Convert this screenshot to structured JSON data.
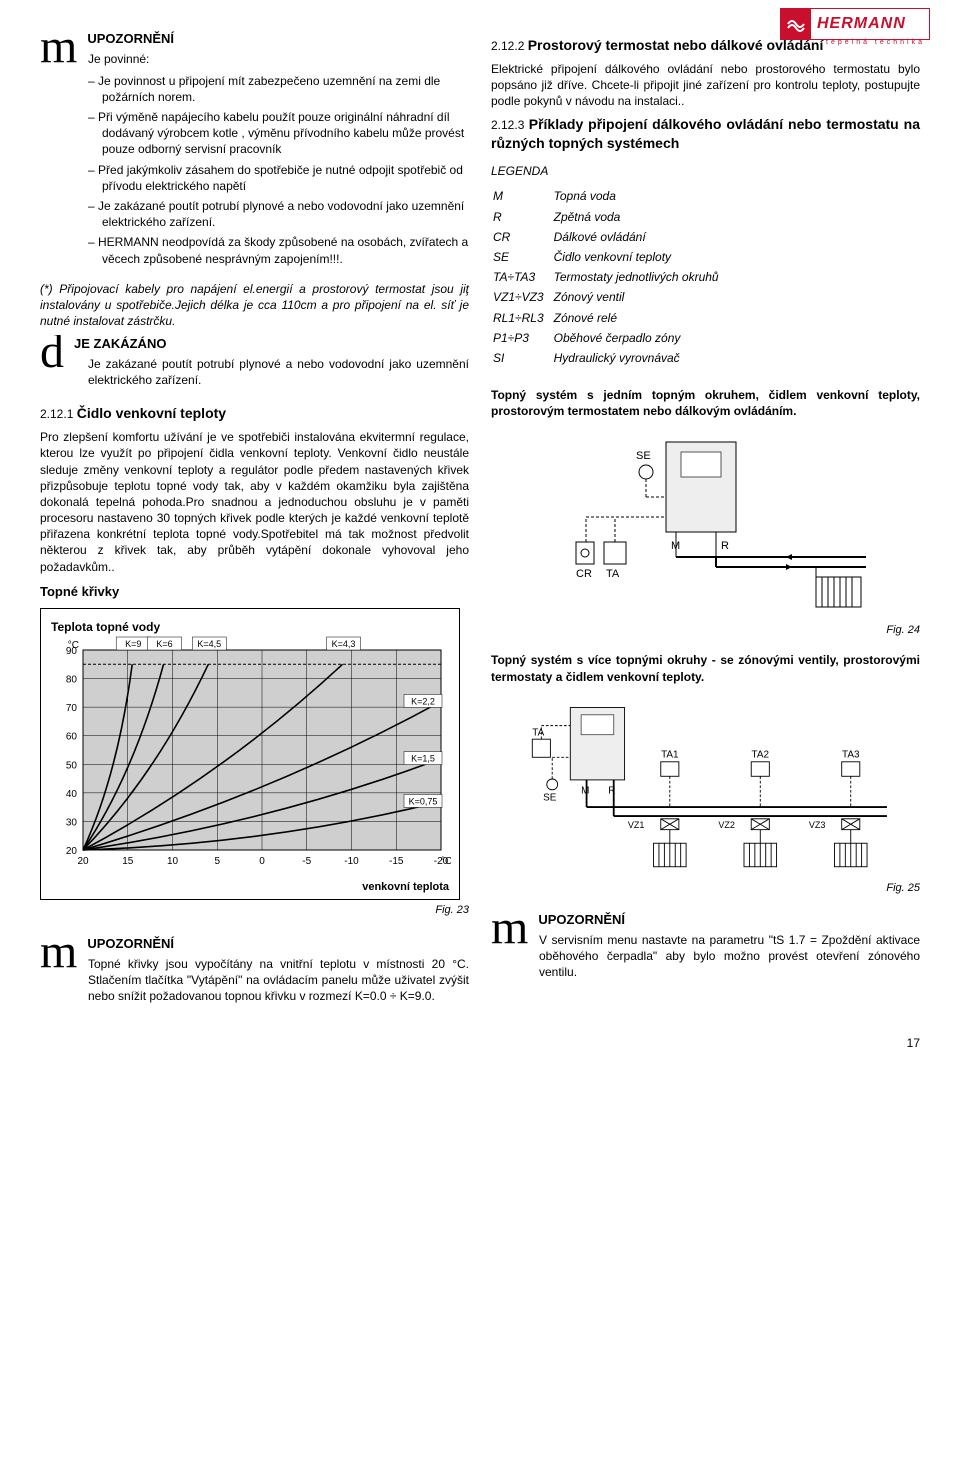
{
  "logo": {
    "brand": "HERMANN",
    "sub": "tepelná technika"
  },
  "left": {
    "warn1_title": "UPOZORNĚNÍ",
    "warn1_intro": "Je povinné:",
    "warn1_items": [
      "Je povinnost u  připojení mít zabezpečeno uzemnění na zemi dle požárních norem.",
      "Při výměně napájecího kabelu použít pouze originální náhradní díl dodávaný výrobcem kotle , výměnu přívodního kabelu může provést pouze odborný servisní pracovník",
      "Před jakýmkoliv zásahem do spotřebiče je nutné odpojit spotřebič od přívodu elektrického napětí",
      "Je zakázané poutít potrubí plynové a nebo vodovodní jako uzemnění elektrického zařízení.",
      "HERMANN neodpovídá za škody způsobené na osobách, zvířatech a věcech způsobené nesprávným zapojením!!!."
    ],
    "note_star": "(*) Připojovací kabely pro napájení el.energií a prostorový termostat jsou jiţ instalovány u spotřebiče.Jejich délka je cca 110cm a pro připojení na el. síť je nutné instalovat zástrčku.",
    "forbid_title": "JE ZAKÁZÁNO",
    "forbid_text": "Je zakázané poutít potrubí plynové a nebo vodovodní jako uzemnění elektrického zařízení.",
    "s2121_num": "2.12.1",
    "s2121_title": "Čidlo venkovní teploty",
    "s2121_body": "Pro zlepšení komfortu užívání je ve spotřebiči instalována ekvitermní regulace, kterou lze využít po připojení čidla venkovní teploty. Venkovní čidlo neustále sleduje změny venkovní teploty a regulátor podle předem nastavených křivek přizpůsobuje teplotu topné vody tak, aby v každém okamžiku byla zajištěna dokonalá tepelná pohoda.Pro snadnou a jednoduchou obsluhu je v paměti procesoru nastaveno 30 topných křivek podle kterých je každé venkovní teplotě přiřazena konkrétní teplota topné vody.Spotřebitel má tak možnost předvolit některou z křivek tak, aby průběh vytápění dokonale vyhovoval jeho požadavkům..",
    "curves_title": "Topné křivky",
    "chart": {
      "title": "Teplota topné vody",
      "y_unit": "°C",
      "x_unit": "°C",
      "x_label": "venkovní teplota",
      "ylim": [
        20,
        90
      ],
      "xlim": [
        20,
        -20
      ],
      "yticks": [
        20,
        30,
        40,
        50,
        60,
        70,
        80,
        90
      ],
      "xticks": [
        20,
        15,
        10,
        5,
        0,
        -5,
        -10,
        -15,
        -20
      ],
      "series": [
        {
          "k": "K=9",
          "x1": 20,
          "y1": 20,
          "x2": 14.5,
          "y2": 85
        },
        {
          "k": "K=6",
          "x1": 20,
          "y1": 20,
          "x2": 11,
          "y2": 85
        },
        {
          "k": "K=4,5",
          "x1": 20,
          "y1": 20,
          "x2": 6,
          "y2": 85
        },
        {
          "k": "K=4,3",
          "x1": 20,
          "y1": 20,
          "x2": -9,
          "y2": 85
        },
        {
          "k": "K=2,2",
          "x1": 20,
          "y1": 20,
          "x2": -20,
          "y2": 72
        },
        {
          "k": "K=1,5",
          "x1": 20,
          "y1": 20,
          "x2": -20,
          "y2": 52
        },
        {
          "k": "K=0,75",
          "x1": 20,
          "y1": 20,
          "x2": -20,
          "y2": 37
        }
      ],
      "line_color": "#000000",
      "grid_color": "#000000",
      "bg_color": "#cfcfcf",
      "fig": "Fig. 23"
    },
    "warn2_title": "UPOZORNĚNÍ",
    "warn2_body": "Topné křivky jsou vypočítány na vnitřní teplotu v místnosti 20 °C. Stlačením tlačítka \"Vytápění\" na ovládacím panelu může uživatel zvýšit nebo snížit požadovanou topnou křivku v rozmezí K=0.0 ÷ K=9.0."
  },
  "right": {
    "s2122_num": "2.12.2",
    "s2122_title": "Prostorový termostat nebo dálkové ovládání",
    "s2122_body": "Elektrické připojení dálkového ovládání nebo prostorového termostatu bylo popsáno již dříve. Chcete-li připojit jiné zařízení pro kontrolu teploty, postupujte podle pokynů v návodu na instalaci..",
    "s2123_num": "2.12.3",
    "s2123_title": "Příklady připojení  dálkového ovládání nebo termostatu na různých topných systémech",
    "legend_title": "LEGENDA",
    "legend": [
      [
        "M",
        "Topná voda"
      ],
      [
        "R",
        "Zpětná voda"
      ],
      [
        "CR",
        "Dálkové ovládání"
      ],
      [
        "SE",
        "Čidlo venkovní teploty"
      ],
      [
        "TA÷TA3",
        "Termostaty jednotlivých okruhů"
      ],
      [
        "VZ1÷VZ3",
        "Zónový ventil"
      ],
      [
        "RL1÷RL3",
        "Zónové relé"
      ],
      [
        "P1÷P3",
        "Oběhové čerpadlo zóny"
      ],
      [
        "SI",
        "Hydraulický vyrovnávač"
      ]
    ],
    "sys1_title": "Topný systém s jedním topným okruhem, čidlem venkovní teploty, prostorovým termostatem nebo dálkovým ovládáním.",
    "sys1_labels": {
      "SE": "SE",
      "CR": "CR",
      "TA": "TA",
      "M": "M",
      "R": "R"
    },
    "fig24": "Fig. 24",
    "sys2_title": "Topný systém s více topnými okruhy - se zónovými ventily, prostorovými termostaty a čidlem venkovní teploty.",
    "sys2_labels": {
      "TA": "TA",
      "SE": "SE",
      "M": "M",
      "R": "R",
      "TA1": "TA1",
      "TA2": "TA2",
      "TA3": "TA3",
      "VZ1": "VZ1",
      "VZ2": "VZ2",
      "VZ3": "VZ3"
    },
    "fig25": "Fig. 25",
    "warn3_title": "UPOZORNĚNÍ",
    "warn3_body": "V servisním menu nastavte na parametru \"tS 1.7 = Zpoždění aktivace oběhového čerpadla\" aby bylo možno provést otevření zónového ventilu."
  },
  "pagenum": "17"
}
